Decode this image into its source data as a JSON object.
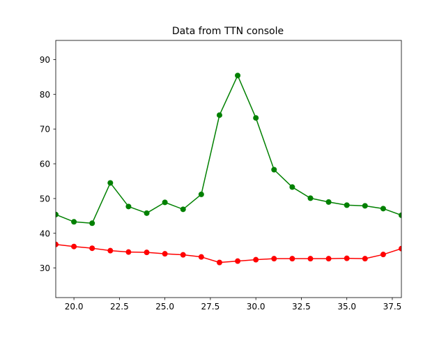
{
  "chart_data": {
    "type": "line",
    "title": "Data from TTN console",
    "xlabel": "",
    "ylabel": "",
    "xlim": [
      19,
      38
    ],
    "ylim": [
      21.5,
      95.5
    ],
    "x_ticks": [
      20.0,
      22.5,
      25.0,
      27.5,
      30.0,
      32.5,
      35.0,
      37.5
    ],
    "x_tick_labels": [
      "20.0",
      "22.5",
      "25.0",
      "27.5",
      "30.0",
      "32.5",
      "35.0",
      "37.5"
    ],
    "y_ticks": [
      30,
      40,
      50,
      60,
      70,
      80,
      90
    ],
    "y_tick_labels": [
      "30",
      "40",
      "50",
      "60",
      "70",
      "80",
      "90"
    ],
    "grid": false,
    "x": [
      19,
      20,
      21,
      22,
      23,
      24,
      25,
      26,
      27,
      28,
      29,
      30,
      31,
      32,
      33,
      34,
      35,
      36,
      37,
      38
    ],
    "series": [
      {
        "color": "#008000",
        "marker": "circle",
        "values": [
          45.4,
          43.3,
          42.9,
          54.5,
          47.7,
          45.8,
          48.9,
          46.9,
          51.2,
          74.0,
          85.4,
          73.2,
          58.3,
          53.3,
          50.1,
          49.0,
          48.1,
          47.9,
          47.1,
          45.2
        ]
      },
      {
        "color": "#ff0000",
        "marker": "circle",
        "values": [
          36.8,
          36.2,
          35.7,
          35.0,
          34.6,
          34.5,
          34.1,
          33.8,
          33.2,
          31.6,
          32.0,
          32.4,
          32.7,
          32.7,
          32.7,
          32.7,
          32.8,
          32.7,
          33.9,
          35.6
        ]
      }
    ]
  }
}
